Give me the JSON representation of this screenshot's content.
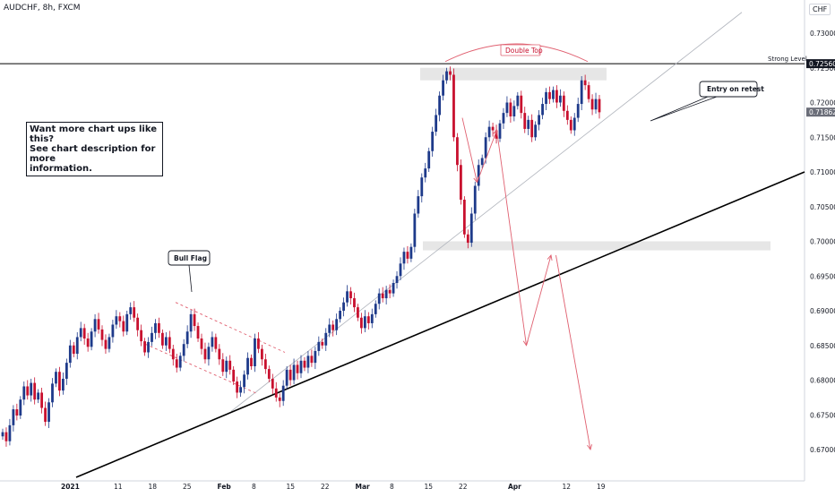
{
  "header": {
    "symbol": "AUDCHF, 8h, FXCM",
    "currency": "CHF"
  },
  "callout": {
    "text": "Want more chart ups like this?\nSee chart description for more\ninformation."
  },
  "colors": {
    "up_candle": "#1e3a8a",
    "down_candle": "#c8102e",
    "projection": "#e06070",
    "support_line": "#000000",
    "channel_line": "#b0b4bc",
    "zone": "#e6e6e6"
  },
  "chart_data": {
    "type": "candlestick",
    "xlabel": "",
    "ylabel": "",
    "ylim": [
      0.666,
      0.734
    ],
    "x_ticks": [
      "2021",
      "11",
      "18",
      "25",
      "Feb",
      "8",
      "15",
      "22",
      "Mar",
      "8",
      "15",
      "22",
      "Apr",
      "12",
      "19"
    ],
    "y_ticks": [
      "0.73000",
      "0.72500",
      "0.72000",
      "0.71500",
      "0.71000",
      "0.70500",
      "0.70000",
      "0.69500",
      "0.69000",
      "0.68500",
      "0.68000",
      "0.67500",
      "0.67000"
    ],
    "current_price": "0.71862",
    "strong_level": {
      "label": "Strong Level",
      "price": "0.72560"
    },
    "annotations": [
      "Double Top",
      "Bull Flag",
      "Entry on retest"
    ],
    "candle_closes": [
      0.6725,
      0.6712,
      0.6735,
      0.6758,
      0.6749,
      0.6772,
      0.6791,
      0.6778,
      0.6796,
      0.6772,
      0.6782,
      0.676,
      0.674,
      0.6768,
      0.6795,
      0.6812,
      0.6785,
      0.6802,
      0.6825,
      0.685,
      0.6838,
      0.6862,
      0.6875,
      0.686,
      0.6848,
      0.687,
      0.6888,
      0.6873,
      0.6858,
      0.6845,
      0.6862,
      0.688,
      0.6892,
      0.6885,
      0.687,
      0.6895,
      0.6905,
      0.689,
      0.6872,
      0.6856,
      0.684,
      0.6855,
      0.6868,
      0.6882,
      0.6868,
      0.685,
      0.6862,
      0.6845,
      0.683,
      0.6818,
      0.6835,
      0.6852,
      0.687,
      0.6895,
      0.6878,
      0.686,
      0.6845,
      0.683,
      0.6848,
      0.6862,
      0.6845,
      0.683,
      0.6812,
      0.6828,
      0.6815,
      0.6798,
      0.6782,
      0.679,
      0.6808,
      0.6832,
      0.682,
      0.686,
      0.6845,
      0.683,
      0.6816,
      0.6802,
      0.6788,
      0.6775,
      0.677,
      0.6792,
      0.6815,
      0.68,
      0.6822,
      0.681,
      0.6828,
      0.6818,
      0.6835,
      0.6825,
      0.6842,
      0.6855,
      0.685,
      0.6868,
      0.688,
      0.6872,
      0.6888,
      0.69,
      0.6912,
      0.6928,
      0.6918,
      0.6905,
      0.689,
      0.6875,
      0.6892,
      0.6882,
      0.6895,
      0.691,
      0.6925,
      0.6918,
      0.693,
      0.6925,
      0.694,
      0.695,
      0.6968,
      0.6985,
      0.6975,
      0.6992,
      0.704,
      0.7065,
      0.7092,
      0.7105,
      0.713,
      0.7158,
      0.7182,
      0.721,
      0.7232,
      0.7245,
      0.724,
      0.715,
      0.711,
      0.706,
      0.701,
      0.6998,
      0.704,
      0.708,
      0.711,
      0.712,
      0.715,
      0.7165,
      0.716,
      0.7148,
      0.717,
      0.7185,
      0.72,
      0.718,
      0.7195,
      0.721,
      0.7185,
      0.7162,
      0.7175,
      0.715,
      0.7168,
      0.7182,
      0.7198,
      0.7215,
      0.7205,
      0.7218,
      0.72,
      0.721,
      0.7188,
      0.7175,
      0.716,
      0.7178,
      0.7198,
      0.7232,
      0.7225,
      0.7205,
      0.719,
      0.7205,
      0.7186
    ],
    "projection_path": [
      {
        "date": "Mar 22",
        "price": 0.7178
      },
      {
        "date": "Mar 25",
        "price": 0.7085
      },
      {
        "date": "Mar 29",
        "price": 0.716
      },
      {
        "date": "Apr 4",
        "price": 0.685
      },
      {
        "date": "Apr 9",
        "price": 0.698
      },
      {
        "date": "Apr 10",
        "price": 0.698
      },
      {
        "date": "Apr 17",
        "price": 0.67
      }
    ]
  }
}
